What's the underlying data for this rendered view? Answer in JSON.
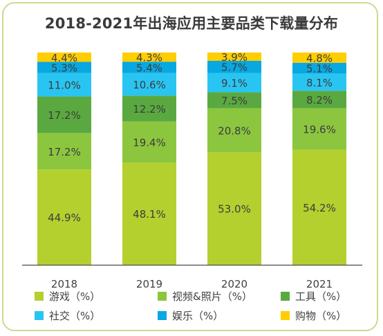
{
  "chart_data": {
    "type": "bar",
    "stacked": true,
    "normalized": true,
    "title": "2018-2021年出海应用主要品类下载量分布",
    "xlabel": "",
    "ylabel": "",
    "ylim": [
      0,
      100
    ],
    "categories": [
      "2018",
      "2019",
      "2020",
      "2021"
    ],
    "series": [
      {
        "name": "游戏（%）",
        "color": "#b3d02f",
        "values": [
          44.9,
          48.1,
          53.0,
          54.2
        ],
        "labels": [
          "44.9%",
          "48.1%",
          "53.0%",
          "54.2%"
        ]
      },
      {
        "name": "视频&照片（%）",
        "color": "#8cc63f",
        "values": [
          17.2,
          19.4,
          20.8,
          19.6
        ],
        "labels": [
          "17.2%",
          "19.4%",
          "20.8%",
          "19.6%"
        ]
      },
      {
        "name": "工具（%）",
        "color": "#5aa940",
        "values": [
          17.2,
          12.2,
          7.5,
          8.2
        ],
        "labels": [
          "17.2%",
          "12.2%",
          "7.5%",
          "8.2%"
        ]
      },
      {
        "name": "社交（%）",
        "color": "#29c5f2",
        "values": [
          11.0,
          10.6,
          9.1,
          8.1
        ],
        "labels": [
          "11.0%",
          "10.6%",
          "9.1%",
          "8.1%"
        ]
      },
      {
        "name": "娱乐（%）",
        "color": "#08a8e0",
        "values": [
          5.3,
          5.4,
          5.7,
          5.1
        ],
        "labels": [
          "5.3%",
          "5.4%",
          "5.7%",
          "5.1%"
        ]
      },
      {
        "name": "购物（%）",
        "color": "#ffcd00",
        "values": [
          4.4,
          4.3,
          3.9,
          4.8
        ],
        "labels": [
          "4.4%",
          "4.3%",
          "3.9%",
          "4.8%"
        ]
      }
    ],
    "grid": false,
    "legend_position": "bottom"
  }
}
